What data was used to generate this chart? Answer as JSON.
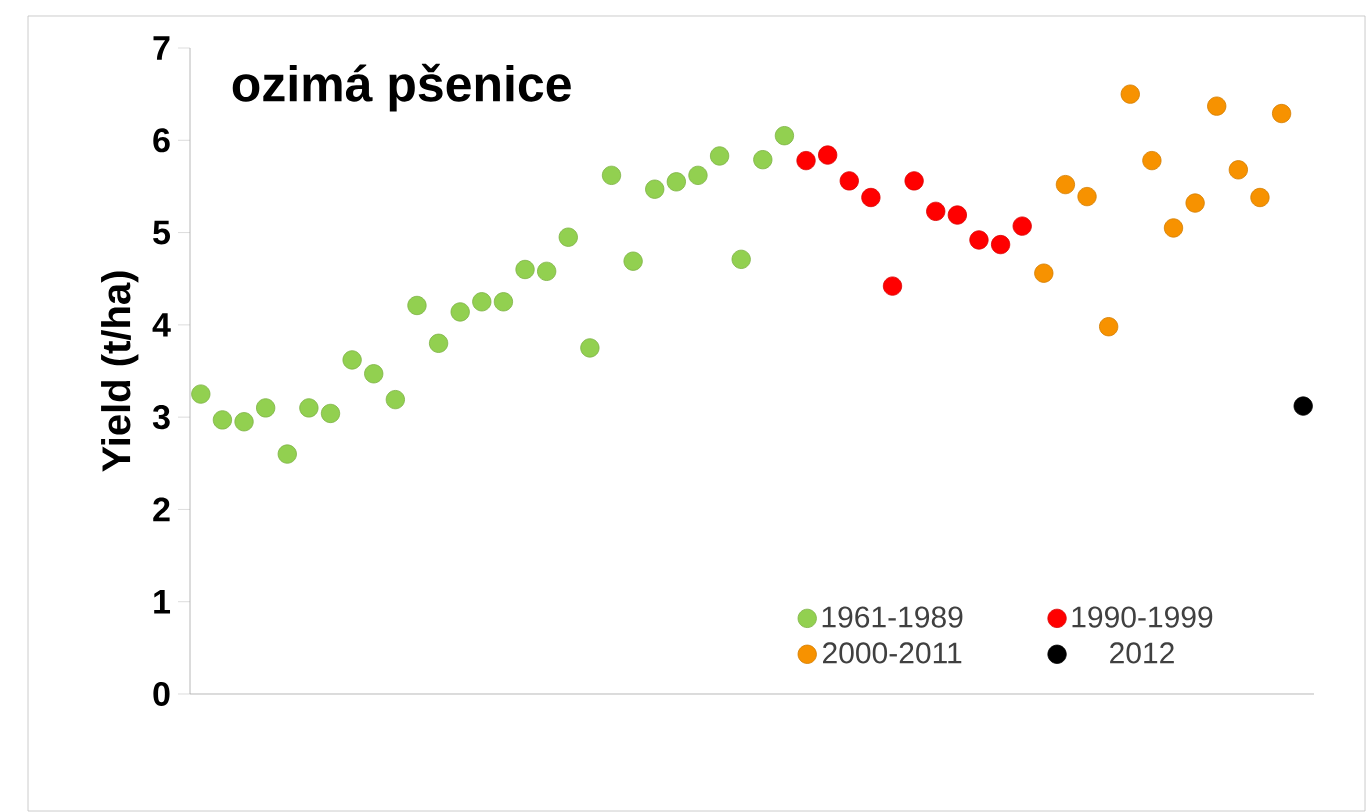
{
  "chart_data": {
    "type": "scatter",
    "title": "ozimá pšenice",
    "ylabel": "Yield (t/ha)",
    "categories": [
      null,
      null,
      null,
      null,
      null,
      null,
      null,
      null,
      null,
      null,
      null,
      null,
      null,
      null,
      null,
      null,
      null,
      null,
      null,
      null,
      null,
      null,
      null,
      null,
      null,
      null,
      null,
      null,
      null,
      null,
      null,
      null,
      null,
      null,
      null,
      null,
      null,
      null,
      null,
      null,
      null,
      null,
      null,
      null,
      null,
      null,
      null,
      null,
      null,
      null,
      null,
      null
    ],
    "ylim": [
      0,
      7
    ],
    "yticks": [
      0,
      1,
      2,
      3,
      4,
      5,
      6,
      7
    ],
    "legend": "bottom right",
    "series": [
      {
        "name": "1961-1989",
        "color": "#92d050",
        "values": [
          3.25,
          2.97,
          2.95,
          3.1,
          2.6,
          3.1,
          3.04,
          3.62,
          3.47,
          3.19,
          4.21,
          3.8,
          4.14,
          4.25,
          4.25,
          4.6,
          4.58,
          4.95,
          3.75,
          5.62,
          4.69,
          5.47,
          5.55,
          5.62,
          5.83,
          4.71,
          5.79,
          6.05,
          null,
          null,
          null,
          null,
          null,
          null,
          null,
          null,
          null,
          null,
          null,
          null,
          null,
          null,
          null,
          null,
          null,
          null,
          null,
          null,
          null,
          null,
          null,
          null
        ]
      },
      {
        "name": "1990-1999",
        "color": "#ff0000",
        "values": [
          null,
          null,
          null,
          null,
          null,
          null,
          null,
          null,
          null,
          null,
          null,
          null,
          null,
          null,
          null,
          null,
          null,
          null,
          null,
          null,
          null,
          null,
          null,
          null,
          null,
          null,
          null,
          null,
          5.78,
          5.84,
          5.56,
          5.38,
          4.42,
          5.56,
          5.23,
          5.19,
          4.92,
          4.87,
          5.07,
          null,
          null,
          null,
          null,
          null,
          null,
          null,
          null,
          null,
          null,
          null,
          null,
          null
        ]
      },
      {
        "name": "2000-2011",
        "color": "#f79200",
        "values": [
          null,
          null,
          null,
          null,
          null,
          null,
          null,
          null,
          null,
          null,
          null,
          null,
          null,
          null,
          null,
          null,
          null,
          null,
          null,
          null,
          null,
          null,
          null,
          null,
          null,
          null,
          null,
          null,
          null,
          null,
          null,
          null,
          null,
          null,
          null,
          null,
          null,
          null,
          null,
          4.56,
          5.52,
          5.39,
          3.98,
          6.5,
          5.78,
          5.05,
          5.32,
          6.37,
          5.68,
          5.38,
          6.29,
          null
        ]
      },
      {
        "name": "2012",
        "color": "#000000",
        "values": [
          null,
          null,
          null,
          null,
          null,
          null,
          null,
          null,
          null,
          null,
          null,
          null,
          null,
          null,
          null,
          null,
          null,
          null,
          null,
          null,
          null,
          null,
          null,
          null,
          null,
          null,
          null,
          null,
          null,
          null,
          null,
          null,
          null,
          null,
          null,
          null,
          null,
          null,
          null,
          null,
          null,
          null,
          null,
          null,
          null,
          null,
          null,
          null,
          null,
          null,
          null,
          3.12
        ]
      }
    ]
  }
}
